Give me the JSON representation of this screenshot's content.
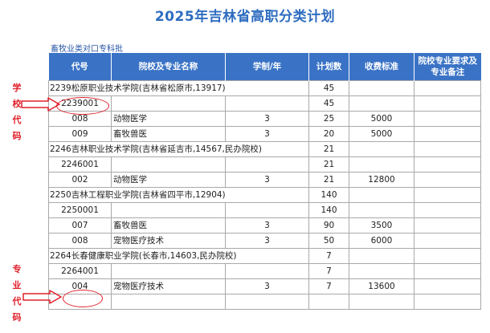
{
  "title": "2025年吉林省高职分类计划",
  "subtitle": "畜牧业类对口专科批",
  "table": {
    "headers": [
      "代号",
      "院校及专业名称",
      "学制/年",
      "计划数",
      "收费标准",
      "院校专业要求及专业备注"
    ],
    "rows": [
      {
        "type": "school",
        "name": "2239松原职业技术学院(吉林省松原市,13917)",
        "plan": "45"
      },
      {
        "type": "code",
        "code": "2239001",
        "plan": "45"
      },
      {
        "type": "major",
        "code": "008",
        "name": "动物医学",
        "years": "3",
        "plan": "25",
        "fee": "5000",
        "note": ""
      },
      {
        "type": "major",
        "code": "009",
        "name": "畜牧兽医",
        "years": "3",
        "plan": "20",
        "fee": "5000",
        "note": ""
      },
      {
        "type": "school",
        "name": "2246吉林职业技术学院(吉林省延吉市,14567,民办院校)",
        "plan": "21"
      },
      {
        "type": "code",
        "code": "2246001",
        "plan": "21"
      },
      {
        "type": "major",
        "code": "002",
        "name": "动物医学",
        "years": "3",
        "plan": "21",
        "fee": "12800",
        "note": ""
      },
      {
        "type": "school",
        "name": "2250吉林工程职业学院(吉林省四平市,12904)",
        "plan": "140"
      },
      {
        "type": "code",
        "code": "2250001",
        "plan": "140"
      },
      {
        "type": "major",
        "code": "007",
        "name": "畜牧兽医",
        "years": "3",
        "plan": "90",
        "fee": "3500",
        "note": ""
      },
      {
        "type": "major",
        "code": "008",
        "name": "宠物医疗技术",
        "years": "3",
        "plan": "50",
        "fee": "6000",
        "note": ""
      },
      {
        "type": "school",
        "name": "2264长春健康职业学院(长春市,14603,民办院校)",
        "plan": "7"
      },
      {
        "type": "code",
        "code": "2264001",
        "plan": "7"
      },
      {
        "type": "major",
        "code": "004",
        "name": "宠物医疗技术",
        "years": "3",
        "plan": "7",
        "fee": "13600",
        "note": ""
      },
      {
        "type": "blank"
      }
    ]
  },
  "annotations": {
    "school_code_label": [
      "学",
      "校",
      "代",
      "码"
    ],
    "major_code_label": [
      "专",
      "业",
      "代",
      "码"
    ],
    "accent_color": "#e0202a",
    "header_color": "#3a73c6"
  }
}
